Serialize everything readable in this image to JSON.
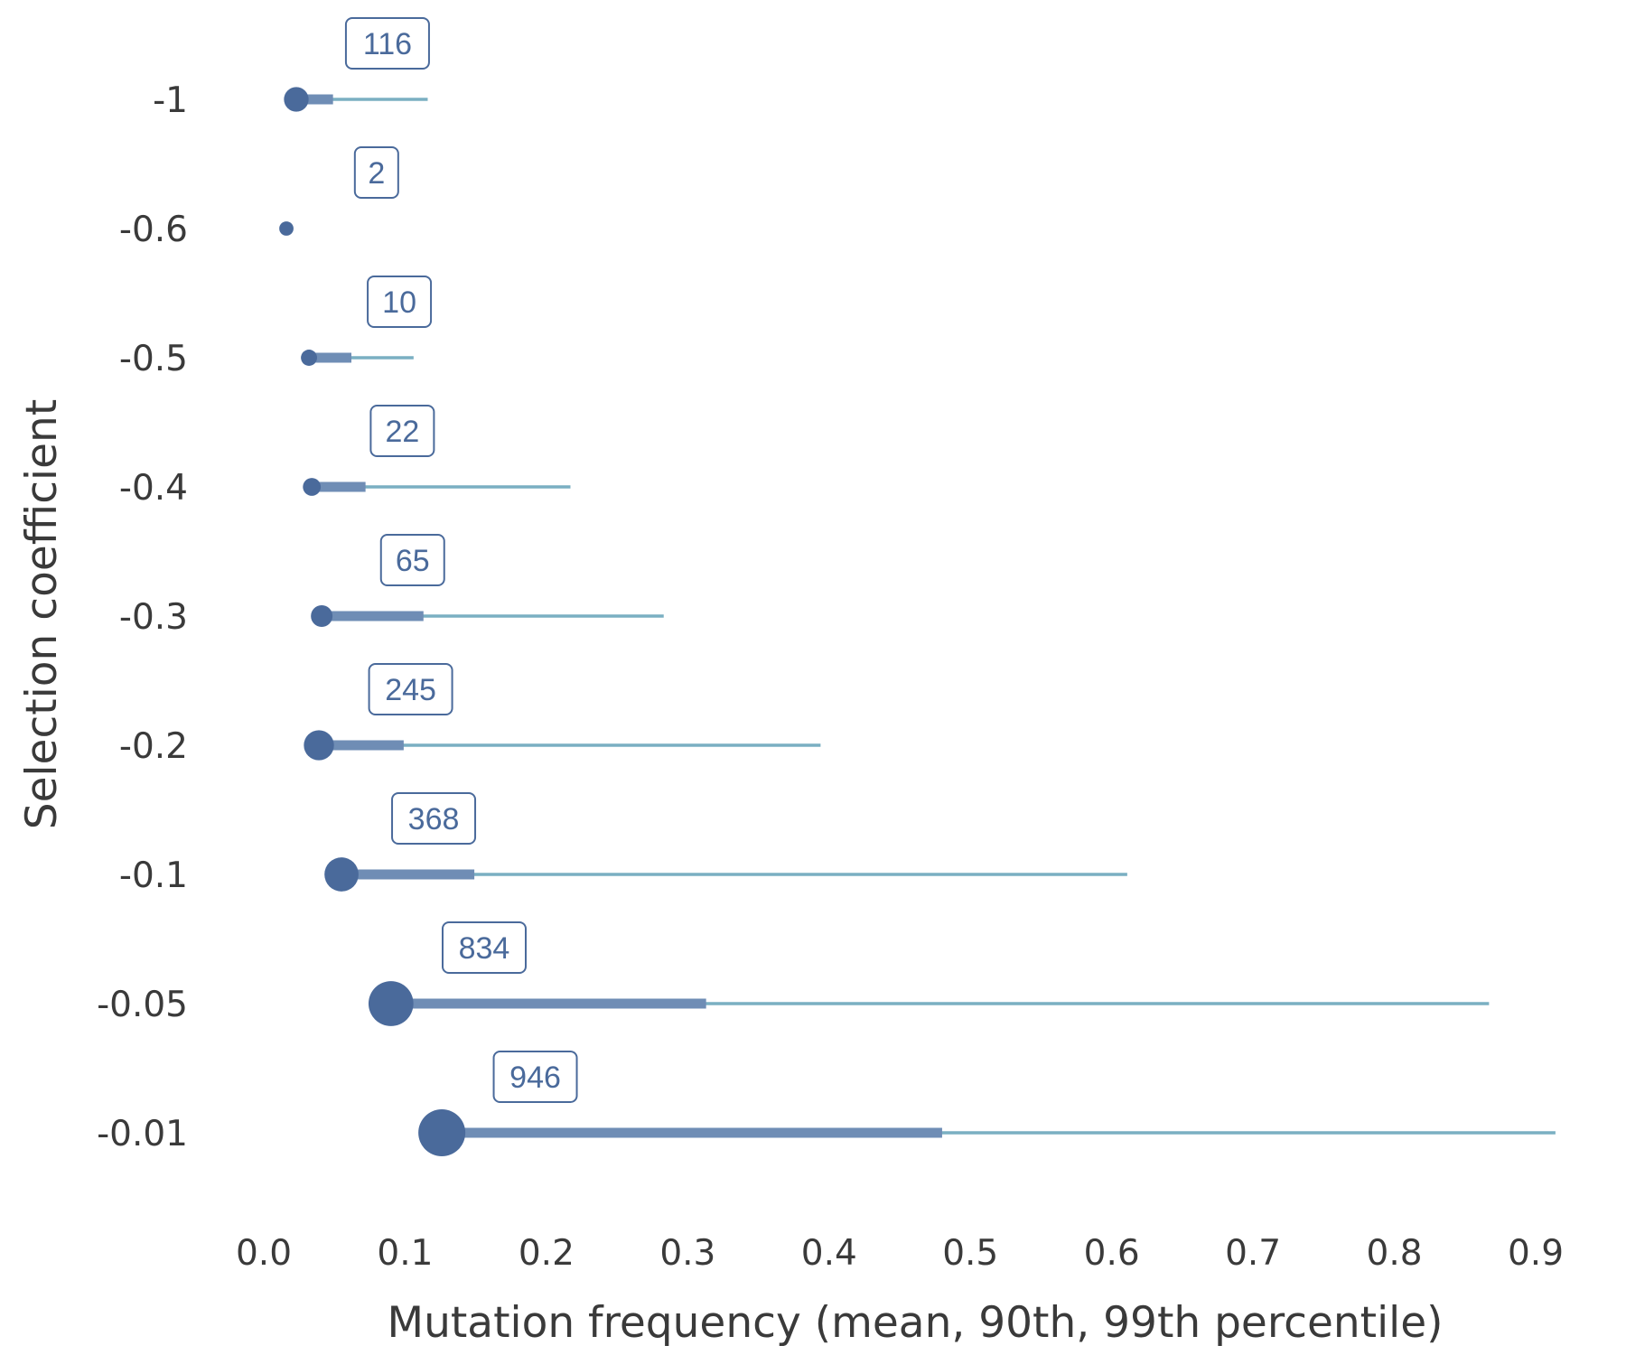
{
  "colors": {
    "point": "#4a6a9b",
    "p90": "#6f8db5",
    "p99": "#7aafc2",
    "label_border": "#4a6a9b",
    "label_text": "#4a6a9b",
    "axis_text": "#3a3a3a"
  },
  "chart_data": {
    "type": "dot-range",
    "title": "",
    "xlabel": "Mutation frequency (mean, 90th, 99th percentile)",
    "ylabel": "Selection coefficient",
    "xlim": [
      -0.01,
      0.925
    ],
    "xticks": [
      0.0,
      0.1,
      0.2,
      0.3,
      0.4,
      0.5,
      0.6,
      0.7,
      0.8,
      0.9
    ],
    "xtick_labels": [
      "0.0",
      "0.1",
      "0.2",
      "0.3",
      "0.4",
      "0.5",
      "0.6",
      "0.7",
      "0.8",
      "0.9"
    ],
    "grid": false,
    "series_names": [
      "mean",
      "90th percentile",
      "99th percentile",
      "count"
    ],
    "rows": [
      {
        "label": "-1",
        "count": 116,
        "count_label": "116",
        "mean": 0.023,
        "p90": 0.049,
        "p99": 0.116
      },
      {
        "label": "-0.6",
        "count": 2,
        "count_label": "2",
        "mean": 0.016,
        "p90": 0.016,
        "p99": 0.016
      },
      {
        "label": "-0.5",
        "count": 10,
        "count_label": "10",
        "mean": 0.032,
        "p90": 0.062,
        "p99": 0.106
      },
      {
        "label": "-0.4",
        "count": 22,
        "count_label": "22",
        "mean": 0.034,
        "p90": 0.072,
        "p99": 0.217
      },
      {
        "label": "-0.3",
        "count": 65,
        "count_label": "65",
        "mean": 0.041,
        "p90": 0.113,
        "p99": 0.283
      },
      {
        "label": "-0.2",
        "count": 245,
        "count_label": "245",
        "mean": 0.039,
        "p90": 0.099,
        "p99": 0.394
      },
      {
        "label": "-0.1",
        "count": 368,
        "count_label": "368",
        "mean": 0.055,
        "p90": 0.149,
        "p99": 0.611
      },
      {
        "label": "-0.05",
        "count": 834,
        "count_label": "834",
        "mean": 0.09,
        "p90": 0.313,
        "p99": 0.867
      },
      {
        "label": "-0.01",
        "count": 946,
        "count_label": "946",
        "mean": 0.126,
        "p90": 0.48,
        "p99": 0.914
      }
    ]
  }
}
